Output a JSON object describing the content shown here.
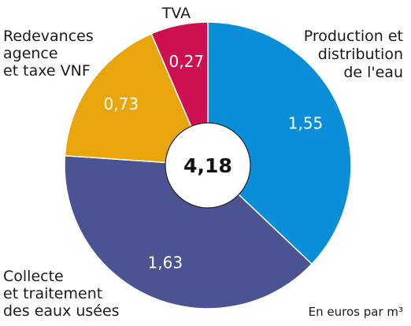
{
  "chart_data": {
    "type": "pie",
    "variant": "donut",
    "total_label": "4,18",
    "unit_note": "En euros par m³",
    "slices": [
      {
        "label_lines": [
          "Production et",
          "distribution",
          "de l'eau"
        ],
        "value": 1.55,
        "value_label": "1,55",
        "color": "#0a8ed8"
      },
      {
        "label_lines": [
          "Collecte",
          "et traitement",
          "des eaux usées"
        ],
        "value": 1.63,
        "value_label": "1,63",
        "color": "#4b5393"
      },
      {
        "label_lines": [
          "Redevances",
          "agence",
          "et taxe VNF"
        ],
        "value": 0.73,
        "value_label": "0,73",
        "color": "#e9a60c"
      },
      {
        "label_lines": [
          "TVA"
        ],
        "value": 0.27,
        "value_label": "0,27",
        "color": "#cc1050"
      }
    ]
  }
}
